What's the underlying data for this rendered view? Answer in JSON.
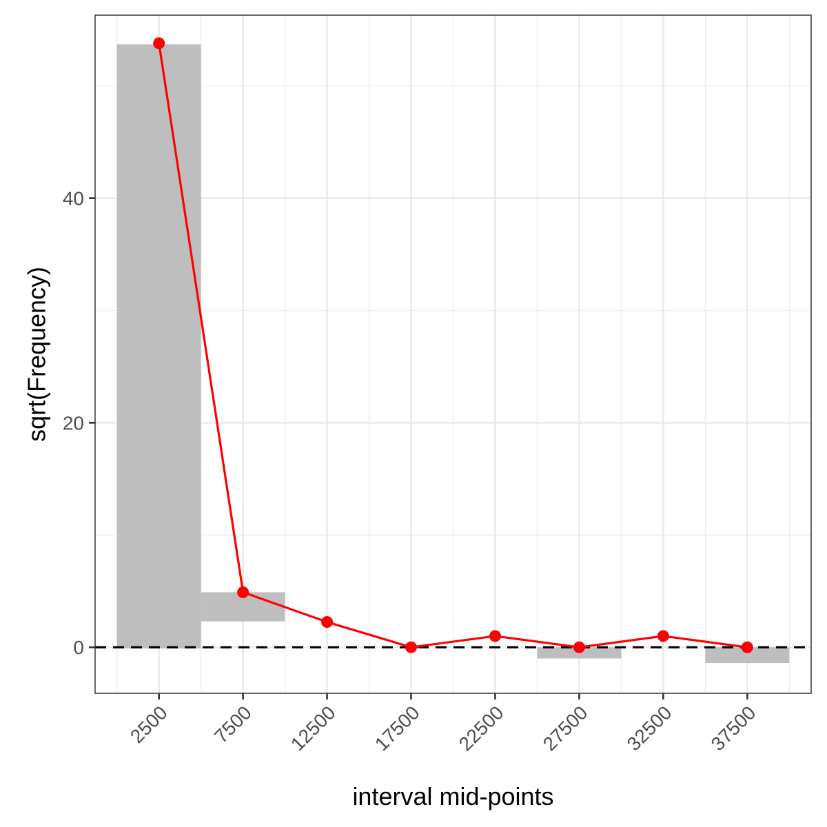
{
  "chart_data": {
    "type": "bar",
    "title": "",
    "xlabel": "interval mid-points",
    "ylabel": "sqrt(Frequency)",
    "x": [
      2500,
      7500,
      12500,
      17500,
      22500,
      27500,
      32500,
      37500
    ],
    "x_tick_labels": [
      "2500",
      "7500",
      "12500",
      "17500",
      "22500",
      "27500",
      "32500",
      "37500"
    ],
    "y_ticks": [
      0,
      20,
      40
    ],
    "y_tick_labels": [
      "0",
      "20",
      "40"
    ],
    "xlim": [
      -1300,
      41300
    ],
    "ylim": [
      -4.1,
      56.3
    ],
    "bin_width": 5000,
    "grid": true,
    "reference_line_y": 0,
    "series": [
      {
        "kind": "hanging-bars",
        "color": "#bebebe",
        "bars": [
          {
            "x": 2500,
            "bottom": -0.1,
            "top": 53.7
          },
          {
            "x": 7500,
            "bottom": 2.3,
            "top": 4.9
          },
          {
            "x": 12500,
            "bottom": 2.2,
            "top": 2.2
          },
          {
            "x": 17500,
            "bottom": 0.0,
            "top": 0.0
          },
          {
            "x": 22500,
            "bottom": 1.0,
            "top": 1.0
          },
          {
            "x": 27500,
            "bottom": -1.0,
            "top": 0.0
          },
          {
            "x": 32500,
            "bottom": 1.0,
            "top": 1.0
          },
          {
            "x": 37500,
            "bottom": -1.4,
            "top": 0.0
          }
        ]
      },
      {
        "kind": "line-points",
        "color": "#ff0000",
        "values": [
          53.8,
          4.9,
          2.25,
          0.0,
          1.0,
          0.0,
          1.0,
          0.0
        ]
      }
    ]
  }
}
